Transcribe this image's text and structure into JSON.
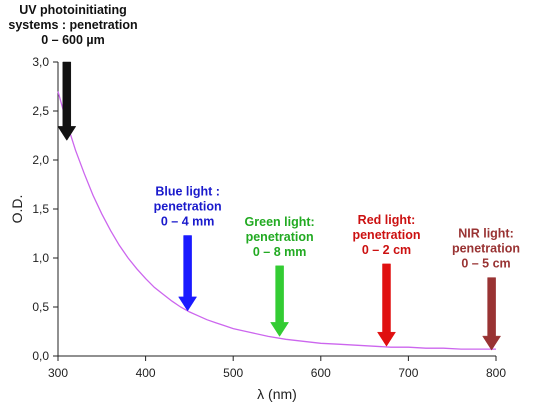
{
  "chart_data": {
    "type": "line",
    "title": "",
    "xlabel": "λ (nm)",
    "ylabel": "O.D.",
    "xlim": [
      300,
      800
    ],
    "ylim": [
      0,
      3.0
    ],
    "x_ticks": [
      "300",
      "400",
      "500",
      "600",
      "700",
      "800"
    ],
    "y_ticks": [
      "0,0",
      "0,5",
      "1,0",
      "1,5",
      "2,0",
      "2,5",
      "3,0"
    ],
    "grid": false,
    "line_color": "#cc66ee",
    "series": [
      {
        "x": [
          300,
          310,
          320,
          330,
          340,
          350,
          360,
          370,
          380,
          390,
          400,
          410,
          420,
          430,
          440,
          450,
          460,
          470,
          480,
          490,
          500,
          520,
          540,
          560,
          580,
          600,
          620,
          640,
          660,
          680,
          700,
          720,
          740,
          760,
          780,
          800
        ],
        "y": [
          2.7,
          2.38,
          2.1,
          1.86,
          1.64,
          1.45,
          1.28,
          1.13,
          1.0,
          0.89,
          0.79,
          0.7,
          0.63,
          0.56,
          0.5,
          0.45,
          0.41,
          0.37,
          0.34,
          0.31,
          0.28,
          0.24,
          0.2,
          0.17,
          0.15,
          0.13,
          0.12,
          0.11,
          0.1,
          0.09,
          0.09,
          0.08,
          0.08,
          0.07,
          0.07,
          0.07
        ]
      }
    ],
    "annotations": [
      {
        "lines": [
          "UV photoinitiating",
          "systems : penetration",
          "0 – 600 µm"
        ],
        "x": 310,
        "arrow_top": 3.0,
        "arrow_tip": 2.2,
        "color": "#111111",
        "text_color": "#111111"
      },
      {
        "lines": [
          "Blue light :",
          "penetration",
          "0 – 4 mm"
        ],
        "x": 448,
        "arrow_top": 1.23,
        "arrow_tip": 0.46,
        "color": "#1a1aff",
        "text_color": "#1a1acc"
      },
      {
        "lines": [
          "Green light:",
          "penetration",
          "0 – 8 mm"
        ],
        "x": 553,
        "arrow_top": 0.92,
        "arrow_tip": 0.2,
        "color": "#33cc33",
        "text_color": "#22aa22"
      },
      {
        "lines": [
          "Red light:",
          "penetration",
          "0 – 2 cm"
        ],
        "x": 675,
        "arrow_top": 0.94,
        "arrow_tip": 0.1,
        "color": "#e01010",
        "text_color": "#cc1111"
      },
      {
        "lines": [
          "NIR light:",
          "penetration",
          "0 – 5 cm"
        ],
        "x": 795,
        "arrow_top": 0.8,
        "arrow_tip": 0.06,
        "color": "#993333",
        "text_color": "#993333"
      }
    ]
  }
}
